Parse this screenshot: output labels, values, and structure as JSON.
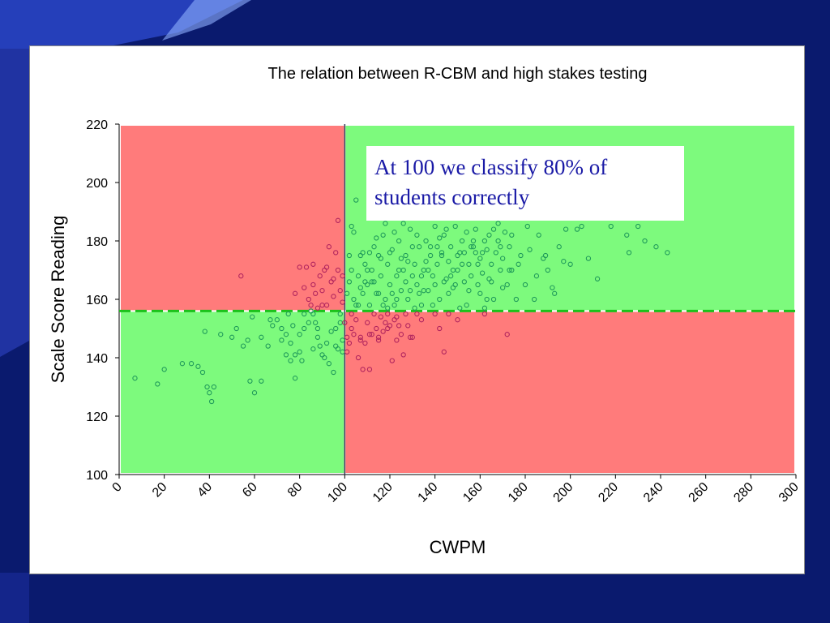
{
  "colors": {
    "slide_background": "#0a1a6e",
    "fail_region": "#ff7b7b",
    "pass_region": "#7dfa7d",
    "green_marker": "#1f9a5a",
    "red_marker": "#b0245e",
    "cut_line": "#1bc21b",
    "callout_text": "#1a1aa6"
  },
  "callout": "At 100 we classify 80% of students correctly",
  "chart_data": {
    "type": "scatter",
    "title": "The relation between R-CBM and high stakes testing",
    "xlabel": "CWPM",
    "ylabel": "Scale Score Reading",
    "xlim": [
      0,
      300
    ],
    "ylim": [
      100,
      220
    ],
    "xticks": [
      0,
      20,
      40,
      60,
      80,
      100,
      120,
      140,
      160,
      180,
      200,
      220,
      240,
      260,
      280,
      300
    ],
    "yticks": [
      100,
      120,
      140,
      160,
      180,
      200,
      220
    ],
    "x_cut": 100,
    "y_cut": 156,
    "regions": [
      {
        "x": [
          0,
          100
        ],
        "y": [
          156,
          220
        ],
        "color": "fail_region"
      },
      {
        "x": [
          100,
          300
        ],
        "y": [
          156,
          220
        ],
        "color": "pass_region"
      },
      {
        "x": [
          0,
          100
        ],
        "y": [
          100,
          156
        ],
        "color": "pass_region"
      },
      {
        "x": [
          100,
          300
        ],
        "y": [
          100,
          156
        ],
        "color": "fail_region"
      }
    ],
    "series": [
      {
        "color": "green_marker",
        "points": [
          [
            7,
            133
          ],
          [
            17,
            131
          ],
          [
            20,
            136
          ],
          [
            28,
            138
          ],
          [
            32,
            138
          ],
          [
            35,
            137
          ],
          [
            37,
            135
          ],
          [
            40,
            128
          ],
          [
            41,
            125
          ],
          [
            39,
            130
          ],
          [
            42,
            130
          ],
          [
            38,
            149
          ],
          [
            52,
            150
          ],
          [
            55,
            144
          ],
          [
            58,
            132
          ],
          [
            60,
            128
          ],
          [
            63,
            132
          ],
          [
            66,
            144
          ],
          [
            70,
            153
          ],
          [
            72,
            150
          ],
          [
            74,
            148
          ],
          [
            76,
            145
          ],
          [
            76,
            139
          ],
          [
            78,
            141
          ],
          [
            80,
            148
          ],
          [
            82,
            150
          ],
          [
            84,
            152
          ],
          [
            86,
            155
          ],
          [
            87,
            152
          ],
          [
            88,
            147
          ],
          [
            89,
            144
          ],
          [
            90,
            141
          ],
          [
            91,
            140
          ],
          [
            93,
            138
          ],
          [
            95,
            135
          ],
          [
            96,
            150
          ],
          [
            98,
            155
          ],
          [
            99,
            146
          ],
          [
            97,
            143
          ],
          [
            78,
            133
          ],
          [
            67,
            153
          ],
          [
            68,
            151
          ],
          [
            75,
            155
          ],
          [
            77,
            151
          ],
          [
            81,
            139
          ],
          [
            86,
            143
          ],
          [
            88,
            150
          ],
          [
            92,
            145
          ],
          [
            94,
            149
          ],
          [
            96,
            144
          ],
          [
            99,
            142
          ],
          [
            98,
            152
          ],
          [
            85,
            156
          ],
          [
            82,
            155
          ],
          [
            80,
            142
          ],
          [
            72,
            146
          ],
          [
            74,
            141
          ],
          [
            63,
            147
          ],
          [
            57,
            146
          ],
          [
            59,
            154
          ],
          [
            45,
            148
          ],
          [
            50,
            147
          ],
          [
            102,
            166
          ],
          [
            103,
            170
          ],
          [
            104,
            160
          ],
          [
            105,
            158
          ],
          [
            106,
            168
          ],
          [
            107,
            175
          ],
          [
            108,
            162
          ],
          [
            109,
            172
          ],
          [
            110,
            165
          ],
          [
            111,
            158
          ],
          [
            112,
            170
          ],
          [
            113,
            178
          ],
          [
            114,
            162
          ],
          [
            115,
            175
          ],
          [
            116,
            168
          ],
          [
            117,
            182
          ],
          [
            118,
            160
          ],
          [
            119,
            172
          ],
          [
            120,
            165
          ],
          [
            121,
            177
          ],
          [
            122,
            158
          ],
          [
            123,
            168
          ],
          [
            124,
            180
          ],
          [
            125,
            163
          ],
          [
            126,
            170
          ],
          [
            127,
            175
          ],
          [
            128,
            160
          ],
          [
            129,
            184
          ],
          [
            130,
            168
          ],
          [
            131,
            172
          ],
          [
            132,
            165
          ],
          [
            133,
            178
          ],
          [
            134,
            158
          ],
          [
            135,
            170
          ],
          [
            136,
            180
          ],
          [
            137,
            163
          ],
          [
            138,
            175
          ],
          [
            139,
            168
          ],
          [
            140,
            185
          ],
          [
            141,
            172
          ],
          [
            142,
            160
          ],
          [
            143,
            176
          ],
          [
            144,
            182
          ],
          [
            145,
            167
          ],
          [
            146,
            173
          ],
          [
            147,
            178
          ],
          [
            148,
            164
          ],
          [
            149,
            185
          ],
          [
            150,
            170
          ],
          [
            151,
            176
          ],
          [
            152,
            180
          ],
          [
            153,
            166
          ],
          [
            154,
            183
          ],
          [
            155,
            172
          ],
          [
            156,
            168
          ],
          [
            157,
            178
          ],
          [
            158,
            184
          ],
          [
            159,
            165
          ],
          [
            160,
            174
          ],
          [
            161,
            169
          ],
          [
            162,
            180
          ],
          [
            163,
            177
          ],
          [
            164,
            167
          ],
          [
            165,
            172
          ],
          [
            166,
            184
          ],
          [
            167,
            176
          ],
          [
            168,
            180
          ],
          [
            169,
            170
          ],
          [
            170,
            174
          ],
          [
            171,
            183
          ],
          [
            172,
            165
          ],
          [
            173,
            178
          ],
          [
            174,
            170
          ],
          [
            176,
            160
          ],
          [
            178,
            175
          ],
          [
            180,
            165
          ],
          [
            182,
            177
          ],
          [
            184,
            160
          ],
          [
            186,
            182
          ],
          [
            188,
            174
          ],
          [
            190,
            170
          ],
          [
            192,
            164
          ],
          [
            195,
            178
          ],
          [
            198,
            184
          ],
          [
            200,
            172
          ],
          [
            203,
            184
          ],
          [
            205,
            185
          ],
          [
            208,
            174
          ],
          [
            212,
            167
          ],
          [
            218,
            185
          ],
          [
            225,
            182
          ],
          [
            226,
            176
          ],
          [
            230,
            185
          ],
          [
            233,
            180
          ],
          [
            238,
            178
          ],
          [
            243,
            176
          ],
          [
            104,
            183
          ],
          [
            108,
            176
          ],
          [
            112,
            166
          ],
          [
            116,
            174
          ],
          [
            118,
            186
          ],
          [
            120,
            176
          ],
          [
            122,
            183
          ],
          [
            124,
            170
          ],
          [
            126,
            186
          ],
          [
            128,
            173
          ],
          [
            130,
            178
          ],
          [
            132,
            182
          ],
          [
            134,
            168
          ],
          [
            136,
            173
          ],
          [
            138,
            178
          ],
          [
            140,
            165
          ],
          [
            142,
            181
          ],
          [
            144,
            166
          ],
          [
            146,
            162
          ],
          [
            148,
            170
          ],
          [
            150,
            175
          ],
          [
            152,
            172
          ],
          [
            154,
            158
          ],
          [
            156,
            178
          ],
          [
            158,
            176
          ],
          [
            160,
            162
          ],
          [
            162,
            157
          ],
          [
            164,
            182
          ],
          [
            166,
            160
          ],
          [
            168,
            186
          ],
          [
            170,
            164
          ],
          [
            174,
            182
          ],
          [
            106,
            158
          ],
          [
            110,
            170
          ],
          [
            114,
            181
          ],
          [
            119,
            157
          ],
          [
            123,
            160
          ],
          [
            127,
            166
          ],
          [
            131,
            157
          ],
          [
            135,
            163
          ],
          [
            139,
            158
          ],
          [
            143,
            175
          ],
          [
            147,
            168
          ],
          [
            151,
            157
          ],
          [
            155,
            163
          ],
          [
            159,
            172
          ],
          [
            163,
            160
          ],
          [
            101,
            162
          ],
          [
            102,
            175
          ],
          [
            103,
            185
          ],
          [
            105,
            194
          ],
          [
            107,
            164
          ],
          [
            109,
            166
          ],
          [
            111,
            176
          ],
          [
            113,
            166
          ],
          [
            115,
            162
          ],
          [
            117,
            158
          ],
          [
            121,
            162
          ],
          [
            125,
            174
          ],
          [
            129,
            163
          ],
          [
            133,
            162
          ],
          [
            137,
            170
          ],
          [
            141,
            178
          ],
          [
            145,
            184
          ],
          [
            149,
            165
          ],
          [
            153,
            176
          ],
          [
            157,
            180
          ],
          [
            161,
            176
          ],
          [
            165,
            166
          ],
          [
            169,
            178
          ],
          [
            173,
            170
          ],
          [
            177,
            172
          ],
          [
            181,
            185
          ],
          [
            185,
            168
          ],
          [
            189,
            175
          ],
          [
            193,
            162
          ],
          [
            197,
            173
          ]
        ]
      },
      {
        "color": "red_marker",
        "points": [
          [
            54,
            168
          ],
          [
            78,
            162
          ],
          [
            80,
            171
          ],
          [
            82,
            164
          ],
          [
            83,
            171
          ],
          [
            84,
            160
          ],
          [
            85,
            158
          ],
          [
            86,
            165
          ],
          [
            87,
            162
          ],
          [
            88,
            157
          ],
          [
            89,
            168
          ],
          [
            90,
            163
          ],
          [
            91,
            170
          ],
          [
            92,
            158
          ],
          [
            93,
            178
          ],
          [
            94,
            166
          ],
          [
            95,
            161
          ],
          [
            96,
            176
          ],
          [
            97,
            170
          ],
          [
            97,
            187
          ],
          [
            98,
            163
          ],
          [
            99,
            168
          ],
          [
            99,
            159
          ],
          [
            86,
            172
          ],
          [
            90,
            158
          ],
          [
            92,
            171
          ],
          [
            95,
            167
          ],
          [
            100,
            152
          ],
          [
            101,
            147
          ],
          [
            102,
            145
          ],
          [
            103,
            150
          ],
          [
            104,
            148
          ],
          [
            105,
            153
          ],
          [
            106,
            140
          ],
          [
            107,
            147
          ],
          [
            108,
            136
          ],
          [
            109,
            145
          ],
          [
            110,
            152
          ],
          [
            111,
            136
          ],
          [
            112,
            148
          ],
          [
            113,
            155
          ],
          [
            114,
            150
          ],
          [
            115,
            147
          ],
          [
            116,
            154
          ],
          [
            117,
            149
          ],
          [
            118,
            152
          ],
          [
            119,
            155
          ],
          [
            120,
            151
          ],
          [
            121,
            139
          ],
          [
            122,
            153
          ],
          [
            123,
            146
          ],
          [
            124,
            151
          ],
          [
            125,
            148
          ],
          [
            126,
            141
          ],
          [
            127,
            155
          ],
          [
            128,
            151
          ],
          [
            129,
            147
          ],
          [
            130,
            147
          ],
          [
            132,
            155
          ],
          [
            134,
            153
          ],
          [
            140,
            155
          ],
          [
            142,
            150
          ],
          [
            144,
            142
          ],
          [
            146,
            155
          ],
          [
            150,
            153
          ],
          [
            162,
            155
          ],
          [
            172,
            148
          ],
          [
            103,
            155
          ],
          [
            107,
            146
          ],
          [
            111,
            148
          ],
          [
            115,
            146
          ],
          [
            119,
            150
          ],
          [
            123,
            154
          ],
          [
            101,
            142
          ]
        ]
      }
    ]
  }
}
